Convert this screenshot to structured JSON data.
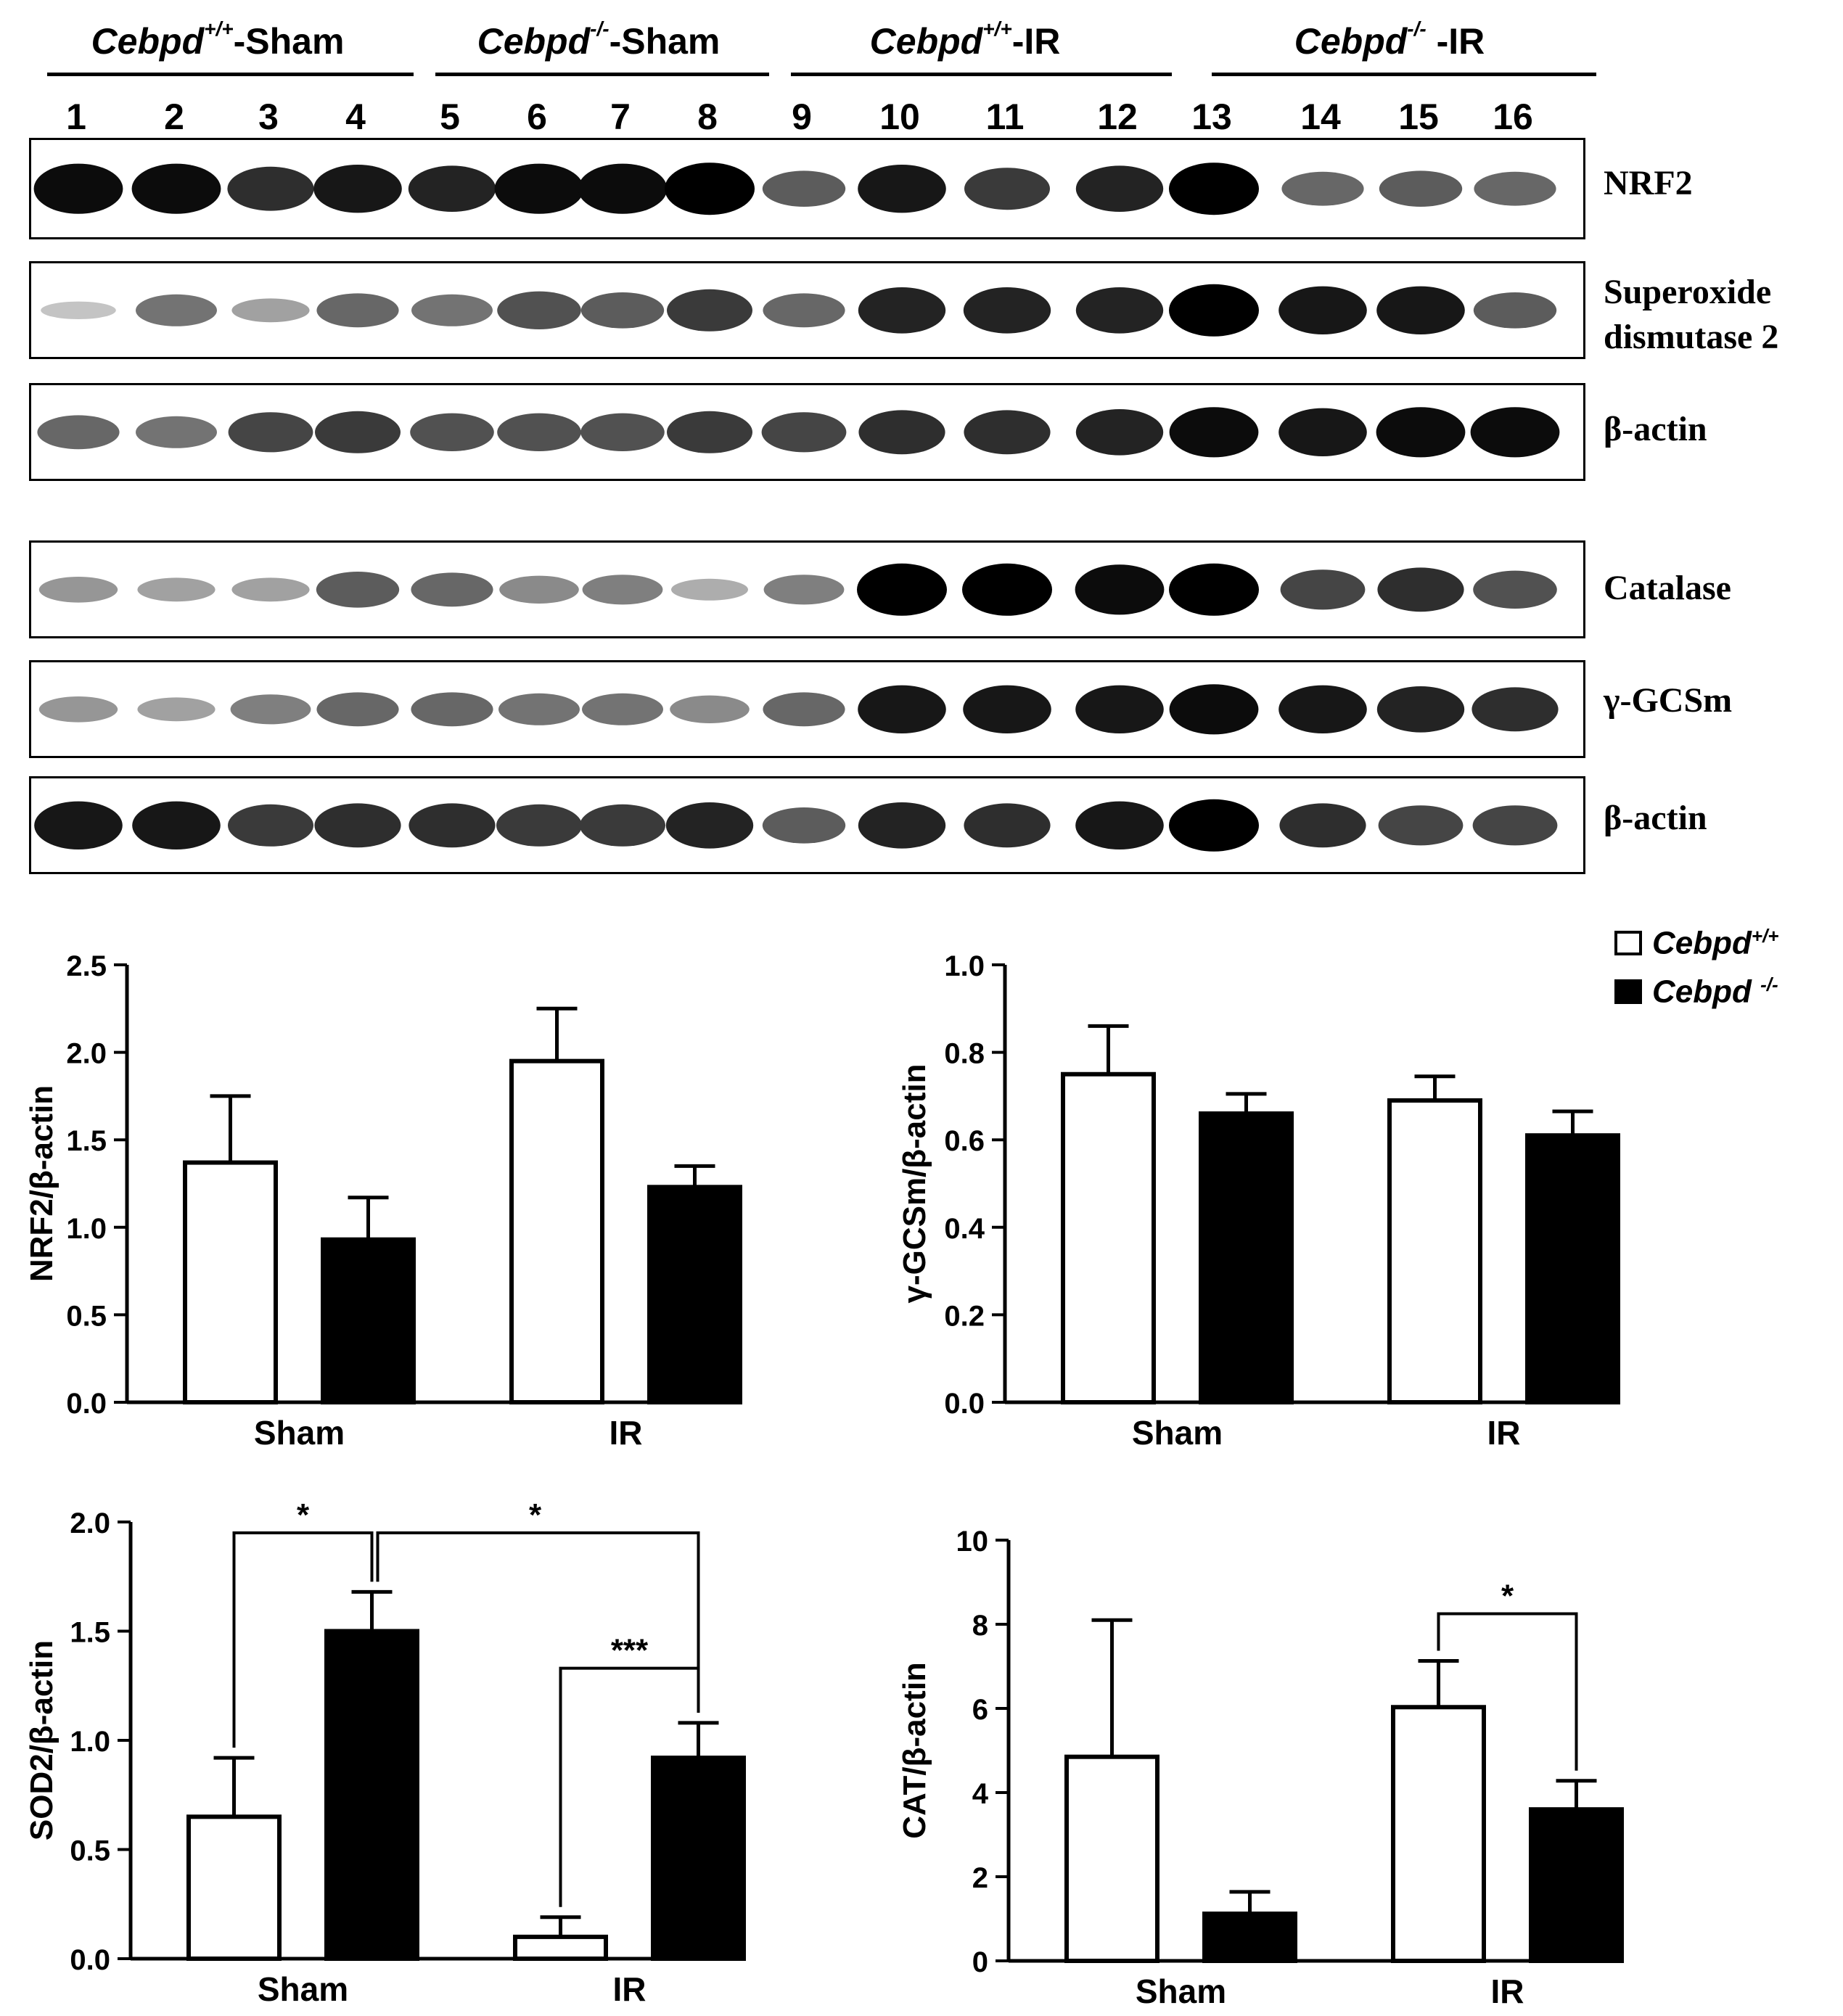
{
  "blot": {
    "groups": [
      {
        "gene": "Cebpd",
        "genotype": "+/+",
        "suffix": "-Sham"
      },
      {
        "gene": "Cebpd",
        "genotype": "-/-",
        "suffix": "-Sham"
      },
      {
        "gene": "Cebpd",
        "genotype": "+/+",
        "suffix": "-IR"
      },
      {
        "gene": "Cebpd",
        "genotype": "-/-",
        "suffix": " -IR"
      }
    ],
    "lanes": [
      "1",
      "2",
      "3",
      "4",
      "5",
      "6",
      "7",
      "8",
      "9",
      "10",
      "11",
      "12",
      "13",
      "14",
      "15",
      "16"
    ],
    "panels": [
      {
        "label_lines": [
          "NRF2"
        ],
        "intensity": [
          0.95,
          0.95,
          0.8,
          0.9,
          0.85,
          0.95,
          0.95,
          1.0,
          0.6,
          0.9,
          0.75,
          0.85,
          1.0,
          0.55,
          0.6,
          0.55
        ]
      },
      {
        "label_lines": [
          "Superoxide",
          "dismutase  2"
        ],
        "intensity": [
          0.15,
          0.5,
          0.3,
          0.55,
          0.5,
          0.65,
          0.6,
          0.75,
          0.55,
          0.85,
          0.85,
          0.85,
          1.0,
          0.9,
          0.9,
          0.6
        ]
      },
      {
        "label_lines": [
          "β-actin"
        ],
        "intensity": [
          0.55,
          0.5,
          0.7,
          0.75,
          0.65,
          0.65,
          0.65,
          0.75,
          0.7,
          0.8,
          0.8,
          0.85,
          0.95,
          0.9,
          0.95,
          0.95
        ]
      },
      {
        "label_lines": [
          "Catalase"
        ],
        "intensity": [
          0.35,
          0.3,
          0.3,
          0.6,
          0.55,
          0.4,
          0.45,
          0.25,
          0.45,
          1.0,
          1.0,
          0.95,
          1.0,
          0.7,
          0.8,
          0.65
        ]
      },
      {
        "label_lines": [
          "γ-GCSm"
        ],
        "intensity": [
          0.35,
          0.3,
          0.45,
          0.55,
          0.55,
          0.5,
          0.5,
          0.4,
          0.55,
          0.9,
          0.9,
          0.9,
          0.95,
          0.9,
          0.85,
          0.8
        ]
      },
      {
        "label_lines": [
          "β-actin"
        ],
        "intensity": [
          0.9,
          0.9,
          0.75,
          0.8,
          0.8,
          0.75,
          0.75,
          0.85,
          0.6,
          0.85,
          0.8,
          0.9,
          1.0,
          0.8,
          0.7,
          0.7
        ]
      }
    ]
  },
  "legend": {
    "items": [
      {
        "gene": "Cebpd",
        "genotype": "+/+",
        "color": "#ffffff"
      },
      {
        "gene": "Cebpd ",
        "genotype": "-/-",
        "color": "#000000"
      }
    ]
  },
  "chart_data": [
    {
      "type": "bar",
      "categories": [
        "Sham",
        "IR"
      ],
      "ylabel": "NRF2/β-actin",
      "ylim": [
        0,
        2.5
      ],
      "yticks": [
        "0.0",
        "0.5",
        "1.0",
        "1.5",
        "2.0",
        "2.5"
      ],
      "series": [
        {
          "name": "Cebpd+/+",
          "color": "#ffffff",
          "values": [
            1.37,
            1.95
          ],
          "errors": [
            0.38,
            0.3
          ]
        },
        {
          "name": "Cebpd -/-",
          "color": "#000000",
          "values": [
            0.93,
            1.23
          ],
          "errors": [
            0.24,
            0.12
          ]
        }
      ],
      "annotations": []
    },
    {
      "type": "bar",
      "categories": [
        "Sham",
        "IR"
      ],
      "ylabel": "γ-GCSm/β-actin",
      "ylim": [
        0,
        1.0
      ],
      "yticks": [
        "0.0",
        "0.2",
        "0.4",
        "0.6",
        "0.8",
        "1.0"
      ],
      "series": [
        {
          "name": "Cebpd+/+",
          "color": "#ffffff",
          "values": [
            0.75,
            0.69
          ],
          "errors": [
            0.11,
            0.055
          ]
        },
        {
          "name": "Cebpd -/-",
          "color": "#000000",
          "values": [
            0.66,
            0.61
          ],
          "errors": [
            0.045,
            0.055
          ]
        }
      ],
      "annotations": []
    },
    {
      "type": "bar",
      "categories": [
        "Sham",
        "IR"
      ],
      "ylabel": "SOD2/β-actin",
      "ylim": [
        0,
        2.0
      ],
      "yticks": [
        "0.0",
        "0.5",
        "1.0",
        "1.5",
        "2.0"
      ],
      "series": [
        {
          "name": "Cebpd+/+",
          "color": "#ffffff",
          "values": [
            0.65,
            0.1
          ],
          "errors": [
            0.27,
            0.09
          ]
        },
        {
          "name": "Cebpd -/-",
          "color": "#000000",
          "values": [
            1.5,
            0.92
          ],
          "errors": [
            0.18,
            0.16
          ]
        }
      ],
      "annotations": [
        {
          "from_bar": [
            0,
            0
          ],
          "to_bar": [
            0,
            1
          ],
          "level": 1.95,
          "label": "*"
        },
        {
          "from_bar": [
            0,
            1
          ],
          "to_bar": [
            1,
            1
          ],
          "level": 1.95,
          "label": "*"
        },
        {
          "from_bar": [
            1,
            0
          ],
          "to_bar": [
            1,
            1
          ],
          "level": 1.33,
          "label": "***"
        }
      ]
    },
    {
      "type": "bar",
      "categories": [
        "Sham",
        "IR"
      ],
      "ylabel": "CAT/β-actin",
      "ylim": [
        0,
        10
      ],
      "yticks": [
        "0",
        "2",
        "4",
        "6",
        "8",
        "10"
      ],
      "series": [
        {
          "name": "Cebpd+/+",
          "color": "#ffffff",
          "values": [
            4.85,
            6.03
          ],
          "errors": [
            3.25,
            1.1
          ]
        },
        {
          "name": "Cebpd -/-",
          "color": "#000000",
          "values": [
            1.12,
            3.6
          ],
          "errors": [
            0.52,
            0.68
          ]
        }
      ],
      "annotations": [
        {
          "from_bar": [
            1,
            0
          ],
          "to_bar": [
            1,
            1
          ],
          "level": 8.25,
          "label": "*"
        }
      ]
    }
  ]
}
